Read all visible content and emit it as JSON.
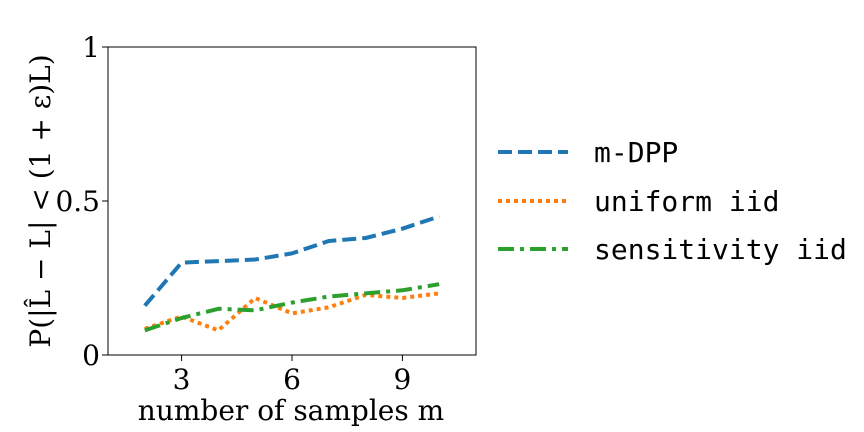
{
  "chart_data": {
    "type": "line",
    "title": "",
    "xlabel": "number of samples m",
    "ylabel": "P(|L̂ − L| < (1 + ε)L)",
    "xlim": [
      1,
      11
    ],
    "ylim": [
      0,
      1
    ],
    "xticks": [
      3,
      6,
      9
    ],
    "xtick_labels": [
      "3",
      "6",
      "9"
    ],
    "yticks": [
      0,
      0.5,
      1
    ],
    "ytick_labels": [
      "0",
      "0.5",
      "1"
    ],
    "grid": false,
    "legend_position": "outside-right",
    "series": [
      {
        "name": "m-DPP",
        "color": "#1f77b4",
        "style": "dashed",
        "x": [
          2,
          3,
          4,
          5,
          6,
          7,
          8,
          9,
          10
        ],
        "y": [
          0.16,
          0.3,
          0.305,
          0.31,
          0.33,
          0.37,
          0.38,
          0.41,
          0.45
        ]
      },
      {
        "name": "uniform iid",
        "color": "#ff7f0e",
        "style": "dotted",
        "x": [
          2,
          3,
          4,
          5,
          6,
          7,
          8,
          9,
          10
        ],
        "y": [
          0.085,
          0.125,
          0.08,
          0.185,
          0.135,
          0.155,
          0.195,
          0.185,
          0.2
        ]
      },
      {
        "name": "sensitivity iid",
        "color": "#2ca02c",
        "style": "dashdot",
        "x": [
          2,
          3,
          4,
          5,
          6,
          7,
          8,
          9,
          10
        ],
        "y": [
          0.08,
          0.12,
          0.15,
          0.145,
          0.17,
          0.19,
          0.2,
          0.21,
          0.23
        ]
      }
    ]
  }
}
